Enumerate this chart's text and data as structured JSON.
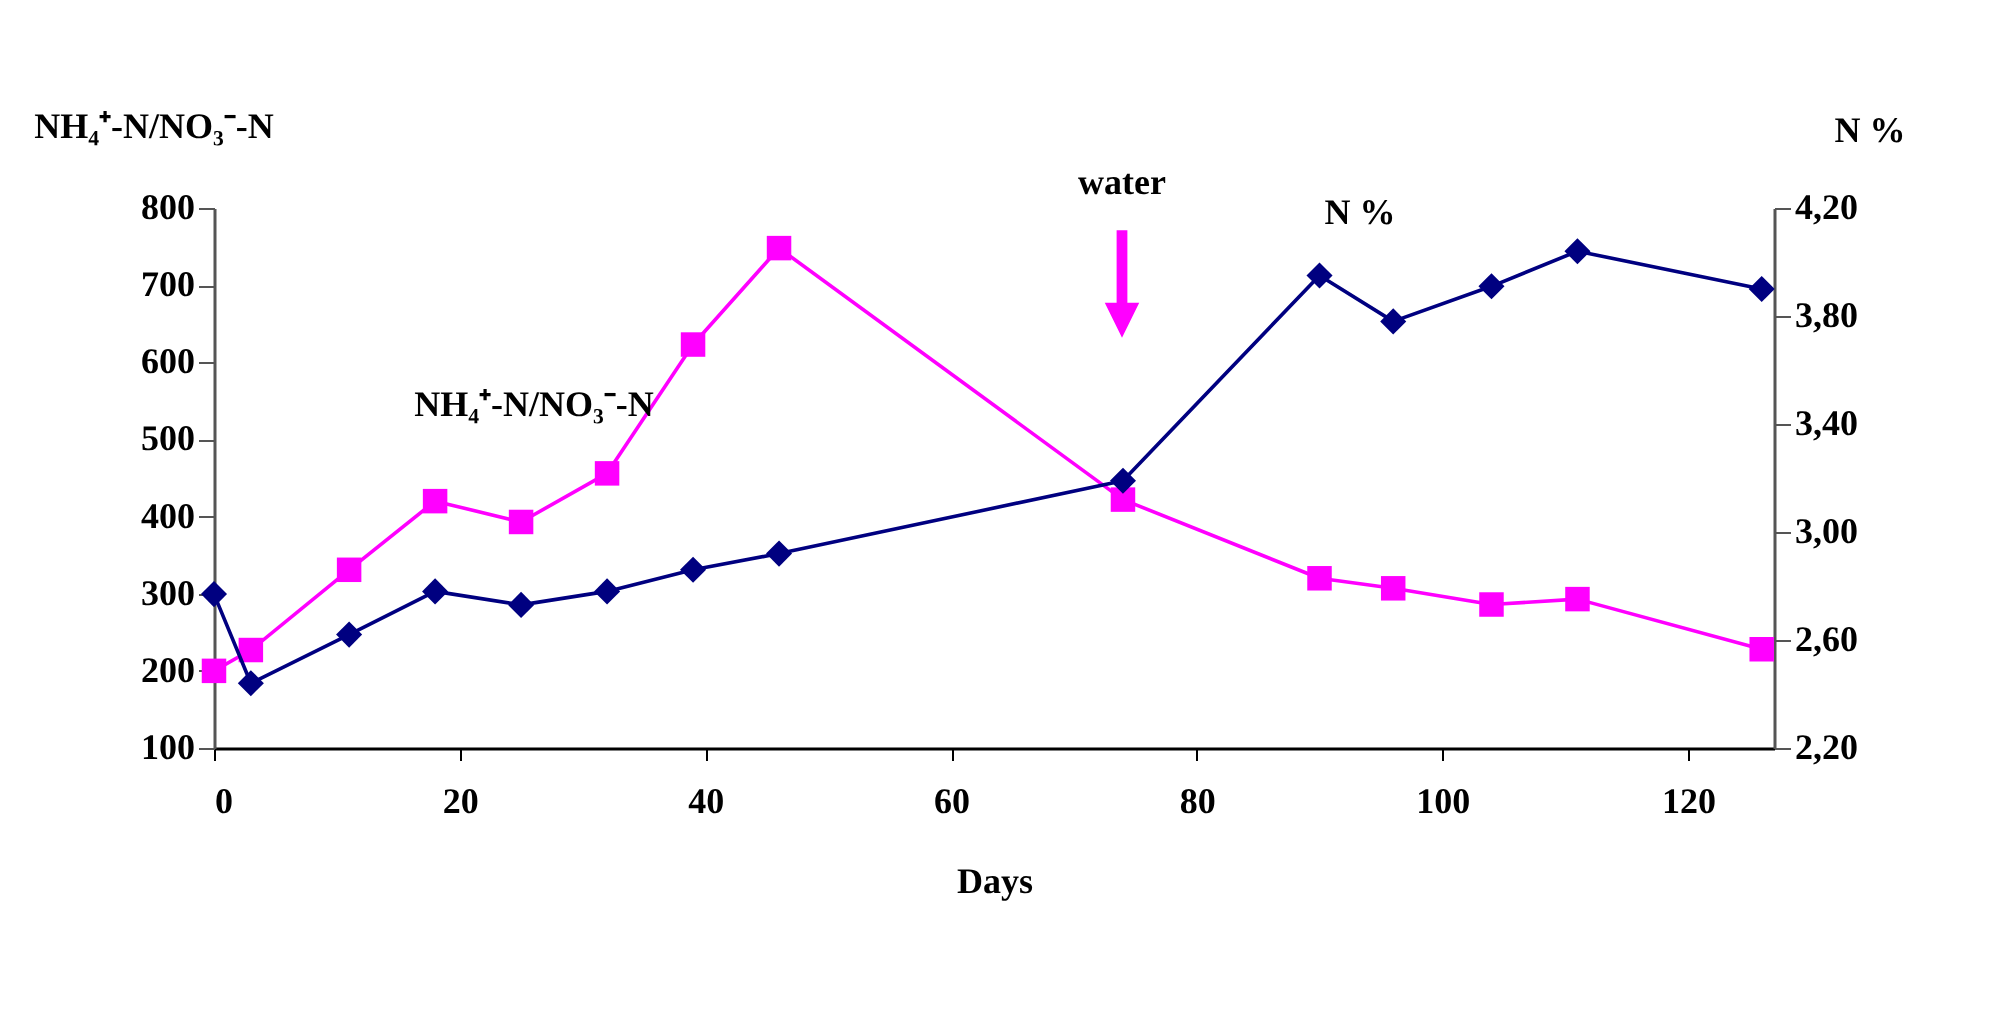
{
  "chart_data": {
    "type": "line",
    "xlabel": "Days",
    "ylabel": "NH₄⁺-N/NO₃⁻-N",
    "y2label": "N %",
    "x": [
      0,
      3,
      11,
      18,
      25,
      32,
      39,
      46,
      74,
      90,
      96,
      104,
      111,
      126
    ],
    "series": [
      {
        "name": "NH₄⁺-N/NO₃⁻-N",
        "color": "#ff00ff",
        "marker": "square",
        "values": [
          200,
          227,
          331,
          420,
          393,
          456,
          623,
          748,
          422,
          320,
          307,
          286,
          293,
          228
        ]
      },
      {
        "name": "N %",
        "color": "#000080",
        "marker": "diamond",
        "axis": "y2",
        "values": [
          2.77,
          2.44,
          2.62,
          2.78,
          2.73,
          2.78,
          2.86,
          2.92,
          3.19,
          3.95,
          3.78,
          3.91,
          4.04,
          3.9
        ]
      }
    ],
    "xlim": [
      0,
      127
    ],
    "xticks": [
      0,
      20,
      40,
      60,
      80,
      100,
      120
    ],
    "ylim": [
      100,
      800
    ],
    "yticks": [
      100,
      200,
      300,
      400,
      500,
      600,
      700,
      800
    ],
    "y2lim": [
      2.2,
      4.2
    ],
    "y2ticks": [
      {
        "value": 2.2,
        "label": "2,20"
      },
      {
        "value": 2.6,
        "label": "2,60"
      },
      {
        "value": 3.0,
        "label": "3,00"
      },
      {
        "value": 3.4,
        "label": "3,40"
      },
      {
        "value": 3.8,
        "label": "3,80"
      },
      {
        "value": 4.2,
        "label": "4,20"
      }
    ],
    "annotations": [
      "water"
    ],
    "grid": false,
    "legend": false
  }
}
